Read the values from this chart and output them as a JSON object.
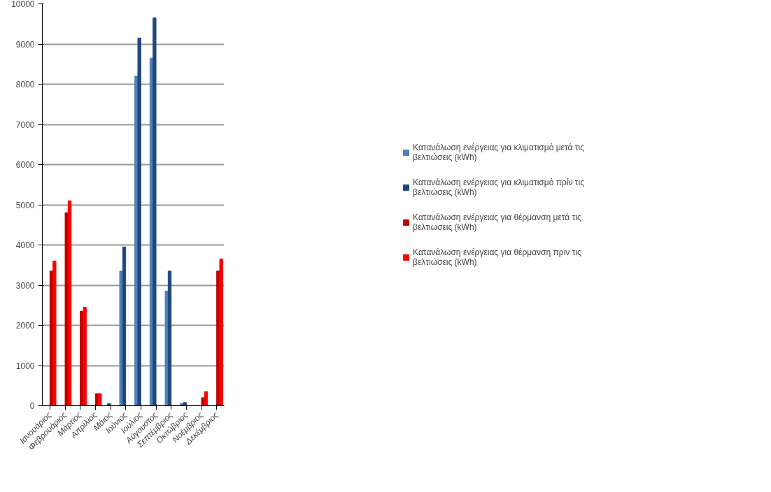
{
  "chart_data": {
    "type": "bar",
    "categories": [
      "Ιανουάριος",
      "Φεβρουάριος",
      "Μάρτιος",
      "Απρίλιος",
      "Μάιος",
      "Ιούνιος",
      "Ιούλιος",
      "Αύγουστος",
      "Σεπτέμβριος",
      "Οκτώβριος",
      "Νοέμβριος",
      "Δεκέμβριος"
    ],
    "series": [
      {
        "name": "Κατανάλωση ενέργειας για κλιματισμό μετά τις βελτιώσεις (kWh)",
        "color": "#4f81bd",
        "values": [
          0,
          0,
          0,
          0,
          null,
          3350,
          8200,
          8650,
          2850,
          50,
          0,
          0
        ]
      },
      {
        "name": "Κατανάλωση ενέργειας για κλιματισμό πρίν τις βελτιώσεις (kWh)",
        "color": "#1f497d",
        "values": [
          0,
          0,
          0,
          0,
          50,
          3950,
          9150,
          9650,
          3350,
          80,
          0,
          0
        ]
      },
      {
        "name": "Κατανάλωση ενέργειας για θέρμανση μετά τις βελτιωσεις (kWh)",
        "color": "#c00000",
        "values": [
          3350,
          4800,
          2350,
          300,
          0,
          0,
          0,
          0,
          0,
          0,
          200,
          3350
        ]
      },
      {
        "name": "Κατανάλωση ενέργειας για θέρμανση πριν τις βελτιώσεις (kWh)",
        "color": "#ff0000",
        "values": [
          3600,
          5100,
          2450,
          300,
          0,
          0,
          0,
          0,
          0,
          0,
          350,
          3650
        ]
      }
    ],
    "ylim": [
      0,
      10000
    ],
    "yticks": [
      0,
      1000,
      2000,
      3000,
      4000,
      5000,
      6000,
      7000,
      8000,
      9000,
      10000
    ],
    "grid": "y",
    "legend": "right"
  }
}
